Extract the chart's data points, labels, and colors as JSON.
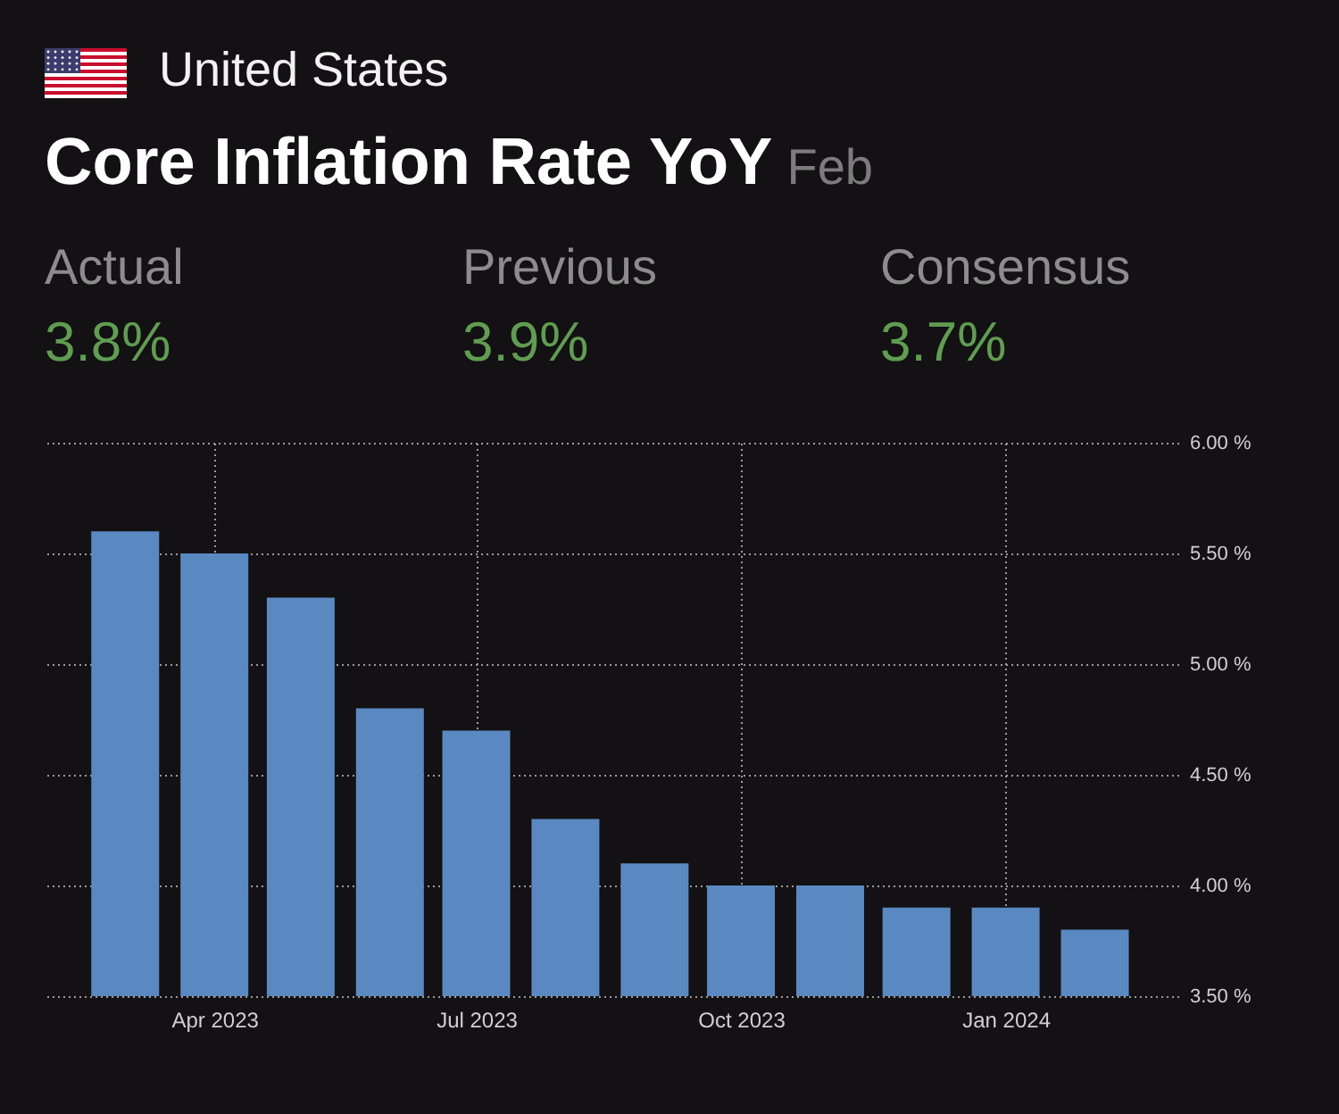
{
  "chart_data": {
    "type": "bar",
    "title": "Core Inflation Rate YoY",
    "subtitle": "United States",
    "annotations": [
      "Feb",
      "Actual",
      "3.8%",
      "Previous",
      "3.9%",
      "Consensus",
      "3.7%"
    ],
    "x": [
      "2023-03",
      "2023-04",
      "2023-05",
      "2023-06",
      "2023-07",
      "2023-08",
      "2023-09",
      "2023-10",
      "2023-11",
      "2023-12",
      "2024-01",
      "2024-02"
    ],
    "values": [
      5.6,
      5.5,
      5.3,
      4.8,
      4.7,
      4.3,
      4.1,
      4.0,
      4.0,
      3.9,
      3.9,
      3.8
    ],
    "color": "#5a89c2",
    "xlim": [
      "2023-02-01",
      "2024-03-01"
    ],
    "xticks": [
      {
        "value": "2023-04",
        "label": "Apr 2023"
      },
      {
        "value": "2023-07",
        "label": "Jul 2023"
      },
      {
        "value": "2023-10",
        "label": "Oct 2023"
      },
      {
        "value": "2024-01",
        "label": "Jan 2024"
      }
    ],
    "ylim": [
      3.5,
      6
    ],
    "yticks": [
      {
        "value": 3.5,
        "label": "3.50 %"
      },
      {
        "value": 4,
        "label": "4.00 %"
      },
      {
        "value": 4.5,
        "label": "4.50 %"
      },
      {
        "value": 5,
        "label": "5.00 %"
      },
      {
        "value": 5.5,
        "label": "5.50 %"
      },
      {
        "value": 6,
        "label": "6.00 %"
      }
    ],
    "grid": true
  }
}
